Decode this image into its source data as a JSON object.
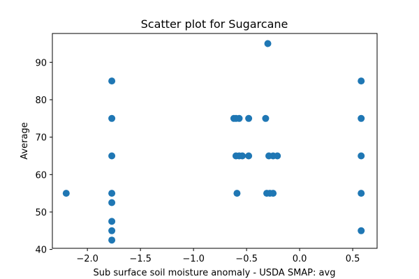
{
  "chart_data": {
    "type": "scatter",
    "title": "Scatter plot for Sugarcane",
    "xlabel": "Sub surface soil moisture anomaly - USDA SMAP: avg",
    "ylabel": "Average",
    "xlim": [
      -2.33,
      0.73
    ],
    "ylim": [
      40.3,
      97.7
    ],
    "xticks": [
      -2.0,
      -1.5,
      -1.0,
      -0.5,
      0.0,
      0.5
    ],
    "xtick_labels": [
      "−2.0",
      "−1.5",
      "−1.0",
      "−0.5",
      "0.0",
      "0.5"
    ],
    "yticks": [
      40,
      50,
      60,
      70,
      80,
      90
    ],
    "ytick_labels": [
      "40",
      "50",
      "60",
      "70",
      "80",
      "90"
    ],
    "grid": false,
    "marker_color": "#1f77b4",
    "points": [
      {
        "x": -2.2,
        "y": 55
      },
      {
        "x": -1.77,
        "y": 85
      },
      {
        "x": -1.77,
        "y": 75
      },
      {
        "x": -1.77,
        "y": 65
      },
      {
        "x": -1.77,
        "y": 55
      },
      {
        "x": -1.77,
        "y": 52.5
      },
      {
        "x": -1.77,
        "y": 47.5
      },
      {
        "x": -1.77,
        "y": 45
      },
      {
        "x": -1.77,
        "y": 42.5
      },
      {
        "x": -0.62,
        "y": 75
      },
      {
        "x": -0.6,
        "y": 75
      },
      {
        "x": -0.57,
        "y": 75
      },
      {
        "x": -0.6,
        "y": 65
      },
      {
        "x": -0.57,
        "y": 65
      },
      {
        "x": -0.54,
        "y": 65
      },
      {
        "x": -0.59,
        "y": 55
      },
      {
        "x": -0.48,
        "y": 75
      },
      {
        "x": -0.48,
        "y": 65
      },
      {
        "x": -0.32,
        "y": 75
      },
      {
        "x": -0.3,
        "y": 95
      },
      {
        "x": -0.29,
        "y": 65
      },
      {
        "x": -0.25,
        "y": 65
      },
      {
        "x": -0.21,
        "y": 65
      },
      {
        "x": -0.31,
        "y": 55
      },
      {
        "x": -0.28,
        "y": 55
      },
      {
        "x": -0.25,
        "y": 55
      },
      {
        "x": 0.58,
        "y": 85
      },
      {
        "x": 0.58,
        "y": 75
      },
      {
        "x": 0.58,
        "y": 65
      },
      {
        "x": 0.58,
        "y": 55
      },
      {
        "x": 0.58,
        "y": 45
      }
    ]
  }
}
